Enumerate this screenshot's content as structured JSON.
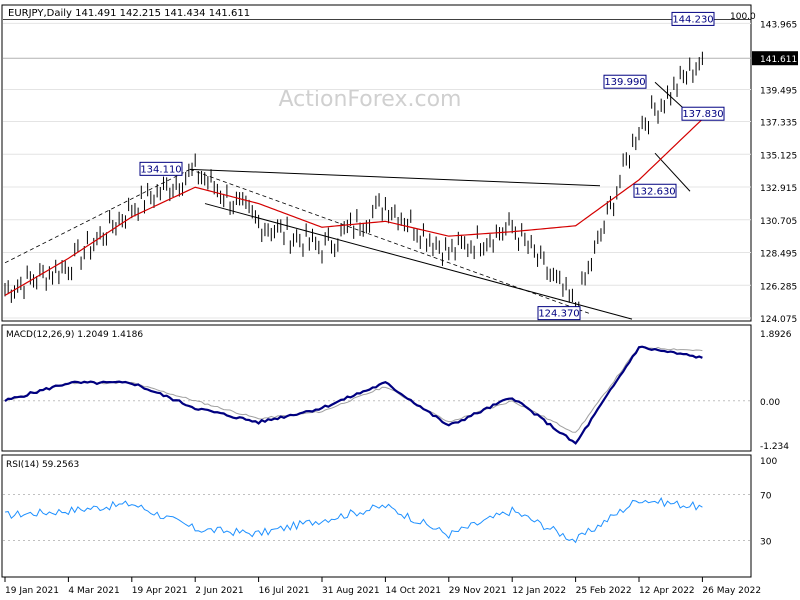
{
  "header": {
    "symbol_line": "EURJPY,Daily  141.491 142.215 141.434 141.611",
    "watermark": "ActionForex.com",
    "fib_level_label": "100.0"
  },
  "indicators": {
    "macd_label": "MACD(12,26,9) 1.2049 1.4186",
    "rsi_label": "RSI(14) 59.2563"
  },
  "colors": {
    "price_bars": "#000000",
    "moving_average": "#d40000",
    "macd_main": "#000080",
    "macd_signal": "#a0a0a0",
    "rsi_line": "#1e90ff",
    "label_box_text": "#000080",
    "current_price_box": "#000000",
    "grid": "#c0c0c0"
  },
  "chart_data": [
    {
      "type": "line",
      "title": "EURJPY,Daily",
      "ohlc_last": {
        "open": 141.491,
        "high": 142.215,
        "low": 141.434,
        "close": 141.611
      },
      "ylim": [
        124.075,
        145.0
      ],
      "y_ticks": [
        "143.965",
        "141.611",
        "139.495",
        "137.335",
        "135.125",
        "132.915",
        "130.705",
        "128.495",
        "126.285",
        "124.075"
      ],
      "x_ticks": [
        "19 Jan 2021",
        "4 Mar 2021",
        "19 Apr 2021",
        "2 Jun 2021",
        "16 Jul 2021",
        "31 Aug 2021",
        "14 Oct 2021",
        "29 Nov 2021",
        "12 Jan 2022",
        "25 Feb 2022",
        "12 Apr 2022",
        "26 May 2022"
      ],
      "current_price": "141.611",
      "level_labels": [
        "144.230",
        "139.990",
        "137.830",
        "134.110",
        "132.630",
        "124.370"
      ],
      "series": [
        {
          "kind": "price",
          "x": [
            "19 Jan 2021",
            "4 Mar 2021",
            "19 Apr 2021",
            "2 Jun 2021",
            "16 Jul 2021",
            "31 Aug 2021",
            "14 Oct 2021",
            "29 Nov 2021",
            "12 Jan 2022",
            "25 Feb 2022",
            "12 Apr 2022",
            "26 May 2022"
          ],
          "values": [
            126.0,
            127.6,
            131.5,
            134.0,
            130.5,
            128.8,
            131.8,
            128.5,
            130.2,
            124.8,
            137.0,
            141.6
          ]
        },
        {
          "kind": "moving_average",
          "x": [
            "19 Jan 2021",
            "4 Mar 2021",
            "19 Apr 2021",
            "2 Jun 2021",
            "16 Jul 2021",
            "31 Aug 2021",
            "14 Oct 2021",
            "29 Nov 2021",
            "12 Jan 2022",
            "25 Feb 2022",
            "12 Apr 2022",
            "26 May 2022"
          ],
          "values": [
            125.6,
            128.1,
            130.9,
            132.9,
            131.8,
            130.2,
            130.6,
            129.6,
            129.9,
            130.3,
            133.4,
            137.5
          ]
        }
      ]
    },
    {
      "type": "line",
      "title": "MACD(12,26,9)",
      "main": 1.2049,
      "signal": 1.4186,
      "y_ticks": [
        "1.8926",
        "0.00",
        "-1.234"
      ],
      "ylim": [
        -1.234,
        1.8926
      ],
      "series": [
        {
          "kind": "macd",
          "x": [
            "19 Jan 2021",
            "4 Mar 2021",
            "19 Apr 2021",
            "2 Jun 2021",
            "16 Jul 2021",
            "31 Aug 2021",
            "14 Oct 2021",
            "29 Nov 2021",
            "12 Jan 2022",
            "25 Feb 2022",
            "12 Apr 2022",
            "26 May 2022"
          ],
          "values": [
            0.0,
            0.5,
            0.5,
            -0.2,
            -0.6,
            -0.2,
            0.5,
            -0.7,
            0.1,
            -1.2,
            1.5,
            1.2
          ]
        },
        {
          "kind": "signal",
          "x": [
            "19 Jan 2021",
            "4 Mar 2021",
            "19 Apr 2021",
            "2 Jun 2021",
            "16 Jul 2021",
            "31 Aug 2021",
            "14 Oct 2021",
            "29 Nov 2021",
            "12 Jan 2022",
            "25 Feb 2022",
            "12 Apr 2022",
            "26 May 2022"
          ],
          "values": [
            0.0,
            0.5,
            0.5,
            0.0,
            -0.5,
            -0.3,
            0.4,
            -0.6,
            0.0,
            -0.9,
            1.5,
            1.4
          ]
        }
      ]
    },
    {
      "type": "line",
      "title": "RSI(14)",
      "value": 59.2563,
      "y_ticks": [
        "100",
        "70",
        "30"
      ],
      "ylim": [
        0,
        100
      ],
      "series": [
        {
          "kind": "rsi",
          "x": [
            "19 Jan 2021",
            "4 Mar 2021",
            "19 Apr 2021",
            "2 Jun 2021",
            "16 Jul 2021",
            "31 Aug 2021",
            "14 Oct 2021",
            "29 Nov 2021",
            "12 Jan 2022",
            "25 Feb 2022",
            "12 Apr 2022",
            "26 May 2022"
          ],
          "values": [
            52,
            56,
            62,
            40,
            36,
            48,
            60,
            35,
            56,
            30,
            66,
            59
          ]
        }
      ]
    }
  ]
}
